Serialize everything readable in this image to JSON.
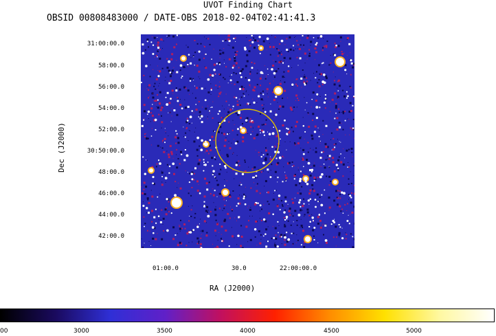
{
  "header": {
    "title": "UVOT Finding Chart",
    "subtitle": "OBSID 00808483000 / DATE-OBS 2018-02-04T02:41:41.3"
  },
  "axes": {
    "xlabel": "RA (J2000)",
    "ylabel": "Dec (J2000)",
    "dec_ticks": [
      "31:00:00.0",
      "58:00.0",
      "56:00.0",
      "54:00.0",
      "52:00.0",
      "30:50:00.0",
      "48:00.0",
      "46:00.0",
      "44:00.0",
      "42:00.0"
    ],
    "ra_ticks": [
      "01:00.0",
      "30.0",
      "22:00:00.0"
    ]
  },
  "colorbar": {
    "labels": [
      "00",
      "3000",
      "3500",
      "4000",
      "4500",
      "5000"
    ],
    "colors": [
      "#000000",
      "#1a0a5e",
      "#2f2fd6",
      "#6020c8",
      "#c01060",
      "#ff2000",
      "#ff8c00",
      "#ffe000",
      "#fff8a0",
      "#ffffff"
    ]
  },
  "image_colors": {
    "background": "#2a2ab8",
    "speckle_dark": "#0b0850",
    "speckle_red": "#b01e60",
    "star": "#ffffff",
    "star_halo": "#ffb020",
    "circle": "#e0c000"
  }
}
